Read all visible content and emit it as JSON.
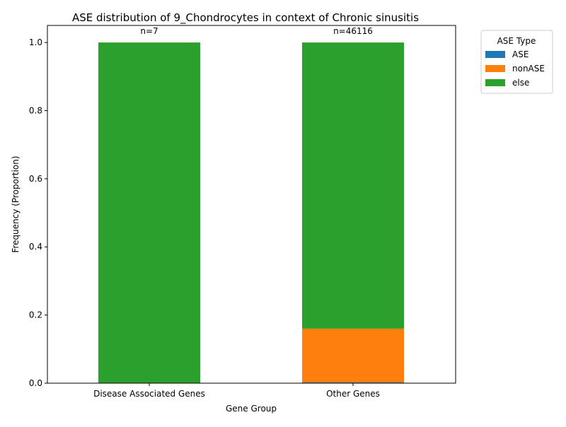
{
  "chart_data": {
    "type": "bar",
    "stacked": true,
    "title": "ASE distribution of 9_Chondrocytes in context of Chronic sinusitis",
    "xlabel": "Gene Group",
    "ylabel": "Frequency (Proportion)",
    "ylim": [
      0,
      1.05
    ],
    "yticks": [
      "0.0",
      "0.2",
      "0.4",
      "0.6",
      "0.8",
      "1.0"
    ],
    "categories": [
      "Disease Associated Genes",
      "Other Genes"
    ],
    "bar_annotations": [
      "n=7",
      "n=46116"
    ],
    "series": [
      {
        "name": "ASE",
        "color": "#1f77b4",
        "values": [
          0.0,
          0.002
        ]
      },
      {
        "name": "nonASE",
        "color": "#ff7f0e",
        "values": [
          0.0,
          0.158
        ]
      },
      {
        "name": "else",
        "color": "#2ca02c",
        "values": [
          1.0,
          0.84
        ]
      }
    ],
    "legend": {
      "title": "ASE Type",
      "placement": "outside-top-right"
    },
    "grid": false
  }
}
